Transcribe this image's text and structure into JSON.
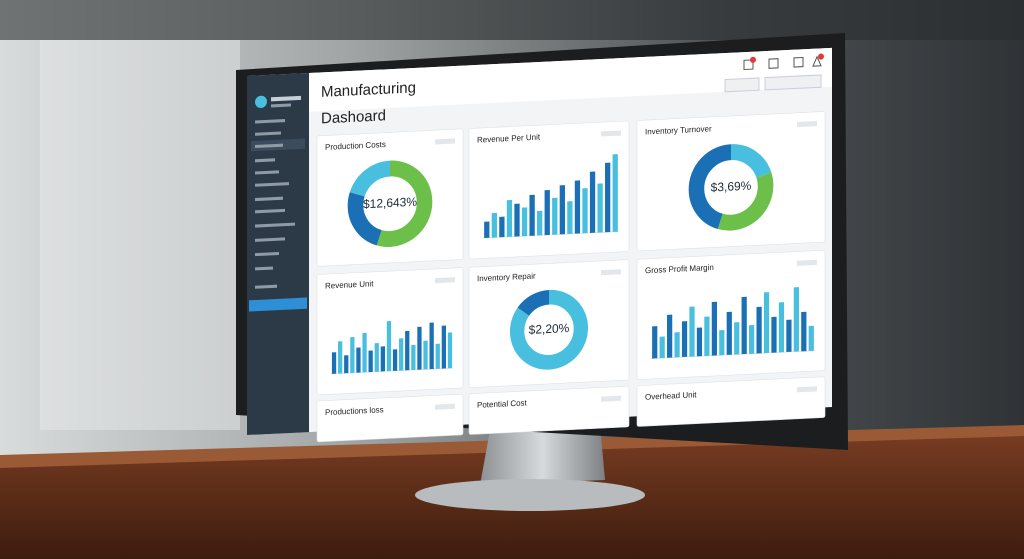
{
  "header": {
    "title_line1": "Manufacturing",
    "title_line2": "Dashoard"
  },
  "cards": [
    {
      "title": "Production Costs",
      "type": "donut",
      "center": "$12,643%",
      "values": [
        55,
        25,
        20
      ],
      "colors": [
        "#6cc04a",
        "#1a6fb5",
        "#49bfe0"
      ]
    },
    {
      "title": "Revenue Per Unit",
      "type": "bar",
      "ylim": [
        0,
        100
      ],
      "values": [
        20,
        30,
        25,
        45,
        40,
        35,
        50,
        30,
        55,
        45,
        60,
        40,
        65,
        55,
        75,
        60,
        85,
        95
      ],
      "colors": [
        "#1a6fb5",
        "#49bfe0"
      ]
    },
    {
      "title": "Inventory Turnover",
      "type": "donut",
      "center": "$3,69%",
      "values": [
        20,
        35,
        45
      ],
      "colors": [
        "#49bfe0",
        "#6cc04a",
        "#1a6fb5"
      ]
    },
    {
      "title": "Revenue Unit",
      "type": "bar",
      "ylim": [
        0,
        100
      ],
      "values": [
        30,
        45,
        25,
        50,
        35,
        55,
        30,
        40,
        35,
        70,
        30,
        45,
        55,
        35,
        60,
        40,
        65,
        35,
        60,
        50
      ],
      "colors": [
        "#1a6fb5",
        "#49bfe0"
      ]
    },
    {
      "title": "Inventory Repair",
      "type": "donut",
      "center": "$2,20%",
      "values": [
        85,
        15
      ],
      "colors": [
        "#49bfe0",
        "#1a6fb5"
      ]
    },
    {
      "title": "Gross Profit Margin",
      "type": "bar",
      "ylim": [
        0,
        100
      ],
      "values": [
        45,
        30,
        60,
        35,
        50,
        70,
        40,
        55,
        75,
        35,
        60,
        45,
        80,
        40,
        65,
        85,
        50,
        70,
        45,
        90,
        55,
        35
      ],
      "colors": [
        "#1a6fb5",
        "#49bfe0"
      ]
    },
    {
      "title": "Productions loss",
      "type": "blank"
    },
    {
      "title": "Potential Cost",
      "type": "blank"
    },
    {
      "title": "Overhead Unit",
      "type": "blank"
    }
  ]
}
